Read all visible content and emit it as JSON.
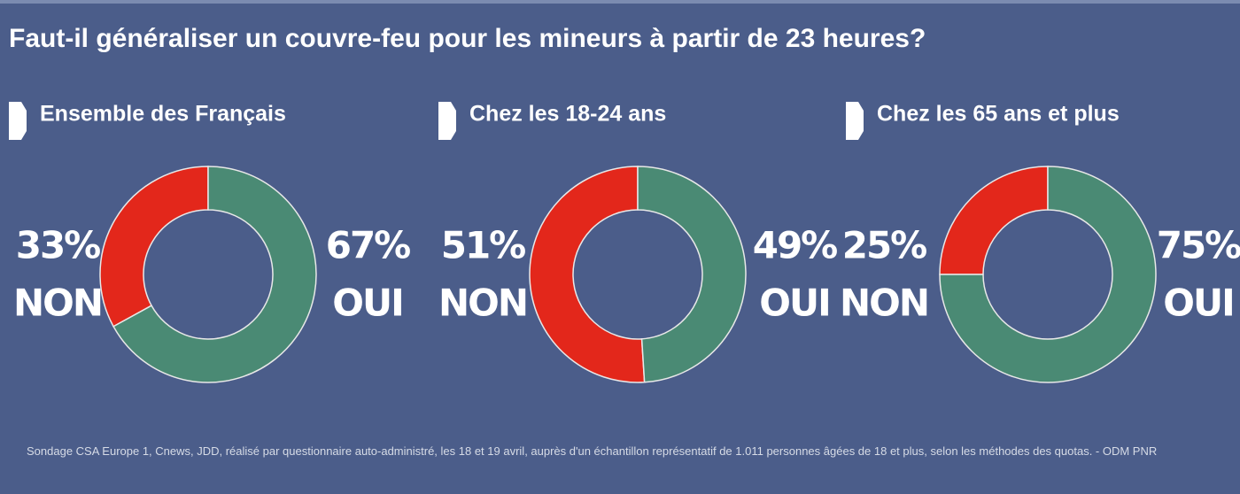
{
  "title": "Faut-il généraliser un couvre-feu pour les mineurs à partir de 23 heures?",
  "chart_data": [
    {
      "type": "donut",
      "title": "Ensemble des Français",
      "categories": [
        "NON",
        "OUI"
      ],
      "values": [
        33,
        67
      ],
      "value_labels": [
        "33%",
        "67%"
      ],
      "colors": [
        "#e3271b",
        "#4a8a74"
      ]
    },
    {
      "type": "donut",
      "title": "Chez les 18-24 ans",
      "categories": [
        "NON",
        "OUI"
      ],
      "values": [
        51,
        49
      ],
      "value_labels": [
        "51%",
        "49%"
      ],
      "colors": [
        "#e3271b",
        "#4a8a74"
      ]
    },
    {
      "type": "donut",
      "title": "Chez les 65 ans et plus",
      "categories": [
        "NON",
        "OUI"
      ],
      "values": [
        25,
        75
      ],
      "value_labels": [
        "25%",
        "75%"
      ],
      "colors": [
        "#e3271b",
        "#4a8a74"
      ]
    }
  ],
  "source": "Sondage CSA Europe 1, Cnews, JDD, réalisé par questionnaire auto-administré, les 18 et 19 avril, auprès d'un échantillon représentatif de 1.011 personnes âgées de 18 et plus, selon les méthodes des quotas. - ODM PNR"
}
